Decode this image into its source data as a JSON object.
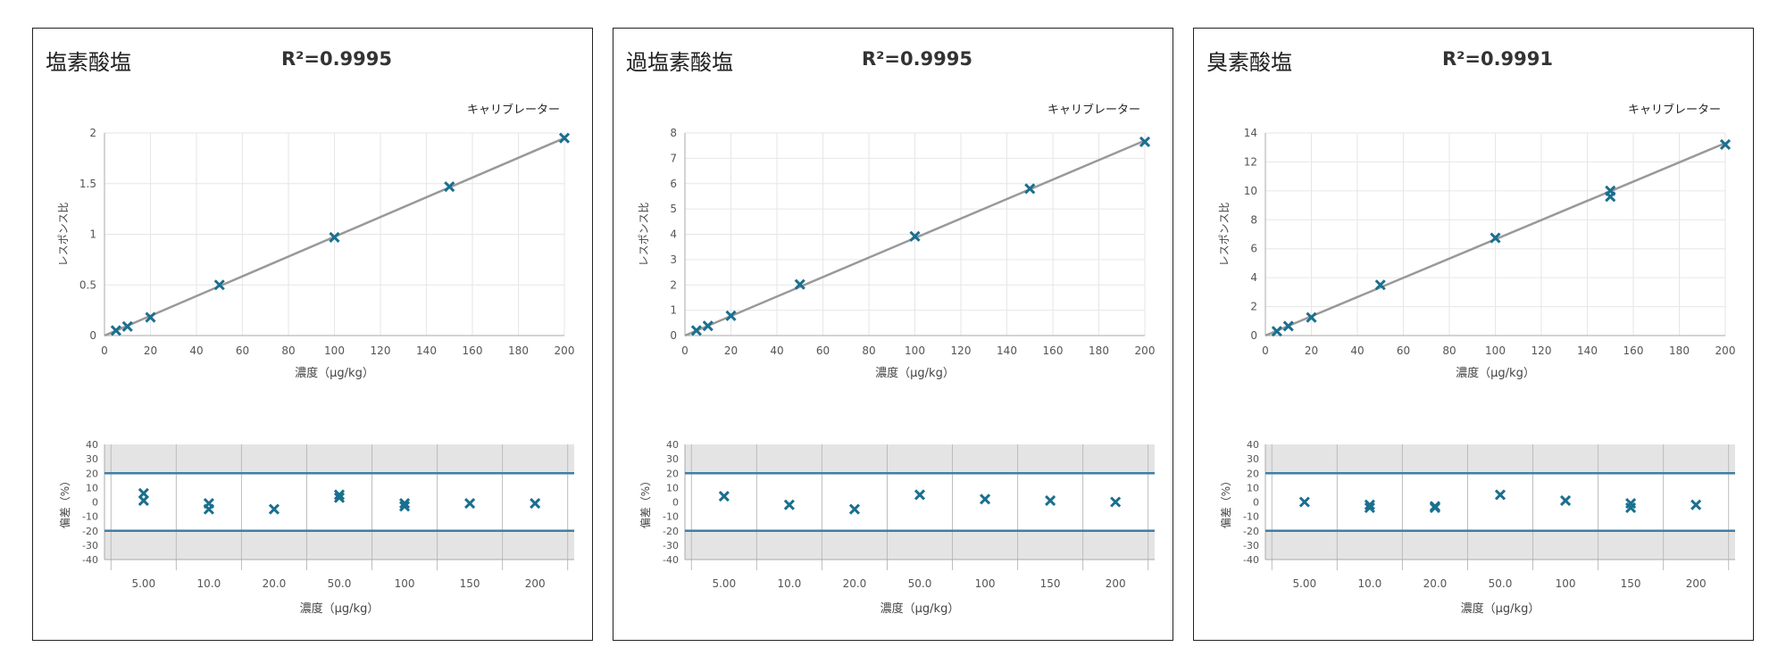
{
  "chart_data": [
    {
      "type": "scatter",
      "title": "塩素酸塩",
      "r2_label": "R²=0.9995",
      "calibration": {
        "legend": "キャリブレーター",
        "xlabel": "濃度（μg/kg）",
        "ylabel": "レスポンス比",
        "xlim": [
          0,
          200
        ],
        "ylim": [
          0,
          2
        ],
        "xticks": [
          "0",
          "20",
          "40",
          "60",
          "80",
          "100",
          "120",
          "140",
          "160",
          "180",
          "200"
        ],
        "yticks": [
          "0",
          "0.5",
          "1",
          "1.5",
          "2"
        ],
        "grid": true,
        "fit_line": [
          [
            0,
            0
          ],
          [
            200,
            1.95
          ]
        ],
        "points": [
          [
            5,
            0.05
          ],
          [
            10,
            0.09
          ],
          [
            20,
            0.18
          ],
          [
            50,
            0.5
          ],
          [
            100,
            0.97
          ],
          [
            150,
            1.47
          ],
          [
            200,
            1.95
          ]
        ]
      },
      "deviation": {
        "xlabel": "濃度（μg/kg）",
        "ylabel": "偏差（%）",
        "categories": [
          "5.00",
          "10.0",
          "20.0",
          "50.0",
          "100",
          "150",
          "200"
        ],
        "ylim": [
          -40,
          40
        ],
        "yticks": [
          "40",
          "30",
          "20",
          "10",
          "0",
          "-10",
          "-20",
          "-30",
          "-40"
        ],
        "limits": [
          20,
          -20
        ],
        "points": [
          [
            0,
            6
          ],
          [
            0,
            1
          ],
          [
            1,
            -1
          ],
          [
            1,
            -5
          ],
          [
            2,
            -5
          ],
          [
            3,
            5
          ],
          [
            3,
            3
          ],
          [
            4,
            -1
          ],
          [
            4,
            -3
          ],
          [
            5,
            -1
          ],
          [
            6,
            -1
          ]
        ]
      }
    },
    {
      "type": "scatter",
      "title": "過塩素酸塩",
      "r2_label": "R²=0.9995",
      "calibration": {
        "legend": "キャリブレーター",
        "xlabel": "濃度（μg/kg）",
        "ylabel": "レスポンス比",
        "xlim": [
          0,
          200
        ],
        "ylim": [
          0,
          8
        ],
        "xticks": [
          "0",
          "20",
          "40",
          "60",
          "80",
          "100",
          "120",
          "140",
          "160",
          "180",
          "200"
        ],
        "yticks": [
          "0",
          "1",
          "2",
          "3",
          "4",
          "5",
          "6",
          "7",
          "8"
        ],
        "grid": true,
        "fit_line": [
          [
            0,
            0
          ],
          [
            200,
            7.7
          ]
        ],
        "points": [
          [
            5,
            0.2
          ],
          [
            10,
            0.38
          ],
          [
            20,
            0.78
          ],
          [
            50,
            2.02
          ],
          [
            100,
            3.92
          ],
          [
            150,
            5.8
          ],
          [
            200,
            7.65
          ]
        ]
      },
      "deviation": {
        "xlabel": "濃度（μg/kg）",
        "ylabel": "偏差（%）",
        "categories": [
          "5.00",
          "10.0",
          "20.0",
          "50.0",
          "100",
          "150",
          "200"
        ],
        "ylim": [
          -40,
          40
        ],
        "yticks": [
          "40",
          "30",
          "20",
          "10",
          "0",
          "-10",
          "-20",
          "-30",
          "-40"
        ],
        "limits": [
          20,
          -20
        ],
        "points": [
          [
            0,
            4
          ],
          [
            1,
            -2
          ],
          [
            2,
            -5
          ],
          [
            3,
            5
          ],
          [
            4,
            2
          ],
          [
            5,
            1
          ],
          [
            6,
            0
          ]
        ]
      }
    },
    {
      "type": "scatter",
      "title": "臭素酸塩",
      "r2_label": "R²=0.9991",
      "calibration": {
        "legend": "キャリブレーター",
        "xlabel": "濃度（μg/kg）",
        "ylabel": "レスポンス比",
        "xlim": [
          0,
          200
        ],
        "ylim": [
          0,
          14
        ],
        "xticks": [
          "0",
          "20",
          "40",
          "60",
          "80",
          "100",
          "120",
          "140",
          "160",
          "180",
          "200"
        ],
        "yticks": [
          "0",
          "2",
          "4",
          "6",
          "8",
          "10",
          "12",
          "14"
        ],
        "grid": true,
        "fit_line": [
          [
            0,
            0
          ],
          [
            200,
            13.3
          ]
        ],
        "points": [
          [
            5,
            0.3
          ],
          [
            10,
            0.65
          ],
          [
            20,
            1.25
          ],
          [
            50,
            3.5
          ],
          [
            100,
            6.75
          ],
          [
            150,
            9.6
          ],
          [
            150,
            10.0
          ],
          [
            200,
            13.2
          ]
        ]
      },
      "deviation": {
        "xlabel": "濃度（μg/kg）",
        "ylabel": "偏差（%）",
        "categories": [
          "5.00",
          "10.0",
          "20.0",
          "50.0",
          "100",
          "150",
          "200"
        ],
        "ylim": [
          -40,
          40
        ],
        "yticks": [
          "40",
          "30",
          "20",
          "10",
          "0",
          "-10",
          "-20",
          "-30",
          "-40"
        ],
        "limits": [
          20,
          -20
        ],
        "points": [
          [
            0,
            0
          ],
          [
            1,
            -2
          ],
          [
            1,
            -4
          ],
          [
            2,
            -3
          ],
          [
            2,
            -4
          ],
          [
            3,
            5
          ],
          [
            4,
            1
          ],
          [
            5,
            -1
          ],
          [
            5,
            -4
          ],
          [
            6,
            -2
          ]
        ]
      }
    }
  ],
  "colors": {
    "marker": "#1a6f8f",
    "fit_line": "#999999",
    "limit_line": "#3d7fa6",
    "band": "#e4e4e4",
    "grid": "#e6e6e6",
    "dev_grid": "#bcbcbc"
  }
}
